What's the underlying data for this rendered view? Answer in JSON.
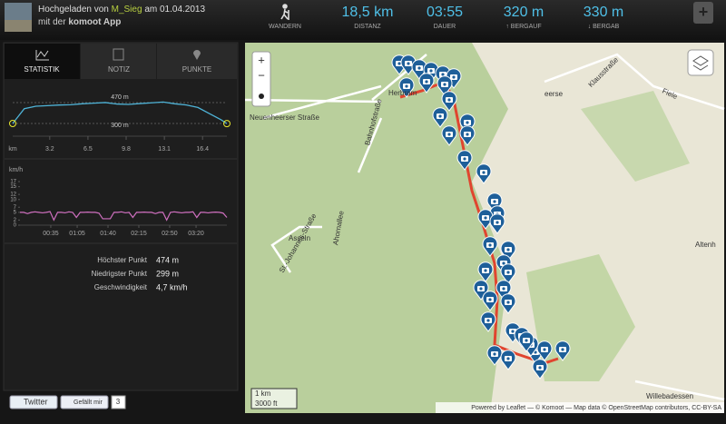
{
  "header": {
    "uploaded_prefix": "Hochgeladen von",
    "user": "M_Sieg",
    "date_text": "am 01.04.2013",
    "app_prefix": "mit der",
    "app": "komoot App"
  },
  "stats": [
    {
      "label": "WANDERN"
    },
    {
      "value": "18,5 km",
      "label": "DISTANZ"
    },
    {
      "value": "03:55",
      "label": "DAUER"
    },
    {
      "value": "320 m",
      "label": "↑ BERGAUF"
    },
    {
      "value": "330 m",
      "label": "↓ BERGAB"
    }
  ],
  "tabs": [
    "STATISTIK",
    "NOTIZ",
    "PUNKTE"
  ],
  "elevation": {
    "type": "line",
    "color": "#4fb4d8",
    "x": [
      0,
      0.5,
      1,
      2,
      3,
      4,
      5,
      6,
      7,
      8,
      9,
      10,
      11,
      12,
      13,
      14,
      15,
      16,
      17,
      18,
      18.5
    ],
    "values": [
      300,
      360,
      420,
      440,
      445,
      450,
      452,
      460,
      465,
      470,
      458,
      455,
      462,
      468,
      474,
      460,
      450,
      430,
      380,
      330,
      299
    ],
    "xlim": [
      0,
      18.5
    ],
    "ylim": [
      290,
      480
    ],
    "x_unit": "km",
    "xticks": [
      3.2,
      6.5,
      9.8,
      13.1,
      16.4
    ],
    "reference_lines": [
      {
        "value": 470,
        "label": "470 m"
      },
      {
        "value": 300,
        "label": "300 m"
      }
    ]
  },
  "speed": {
    "type": "line",
    "color": "#d070c0",
    "y_label": "km/h",
    "xlim": [
      0,
      235
    ],
    "ylim": [
      0,
      17
    ],
    "yticks": [
      0,
      2,
      5,
      7,
      10,
      12,
      15,
      17
    ],
    "xticks": [
      {
        "value": 35,
        "label": "00:35"
      },
      {
        "value": 65,
        "label": "01:05"
      },
      {
        "value": 100,
        "label": "01:40"
      },
      {
        "value": 135,
        "label": "02:15"
      },
      {
        "value": 170,
        "label": "02:50"
      },
      {
        "value": 200,
        "label": "03:20"
      }
    ],
    "values": [
      5,
      5,
      4.5,
      5,
      5.2,
      5,
      4.8,
      5,
      5.3,
      2,
      5,
      5,
      4.8,
      5.2,
      5,
      3,
      5,
      5,
      5.1,
      5,
      5,
      4.7,
      2.5,
      2.5,
      2.5,
      5,
      5,
      5.2,
      4.8,
      5,
      3,
      5,
      5,
      5.1,
      5,
      5,
      4.5,
      5,
      5,
      2,
      5,
      5.2,
      5,
      4.8,
      5,
      5,
      5.2,
      3,
      5,
      5,
      4.8,
      5,
      5.1,
      5,
      4.7,
      3
    ]
  },
  "summary": [
    [
      "Höchster Punkt",
      "474 m"
    ],
    [
      "Niedrigster Punkt",
      "299 m"
    ],
    [
      "Geschwindigkeit",
      "4,7 km/h"
    ]
  ],
  "map": {
    "places": [
      "Herbram",
      "Neuenheerser Straße",
      "Bahnhofstraße",
      "Asseln",
      "Ahornallee",
      "St.-Johannes-Straße",
      "eerse",
      "Klausstraße",
      "Fiele",
      "Altenh",
      "Willebadessen"
    ],
    "zoom_in": "+",
    "zoom_out": "−",
    "scale_metric": "1 km",
    "scale_imperial": "3000 ft",
    "attribution": "Powered by Leaflet — © Komoot — Map data © OpenStreetMap contributors, CC-BY-SA"
  },
  "social": {
    "twitter": "Twitter",
    "like": "Gefällt mir",
    "like_count": "3"
  }
}
